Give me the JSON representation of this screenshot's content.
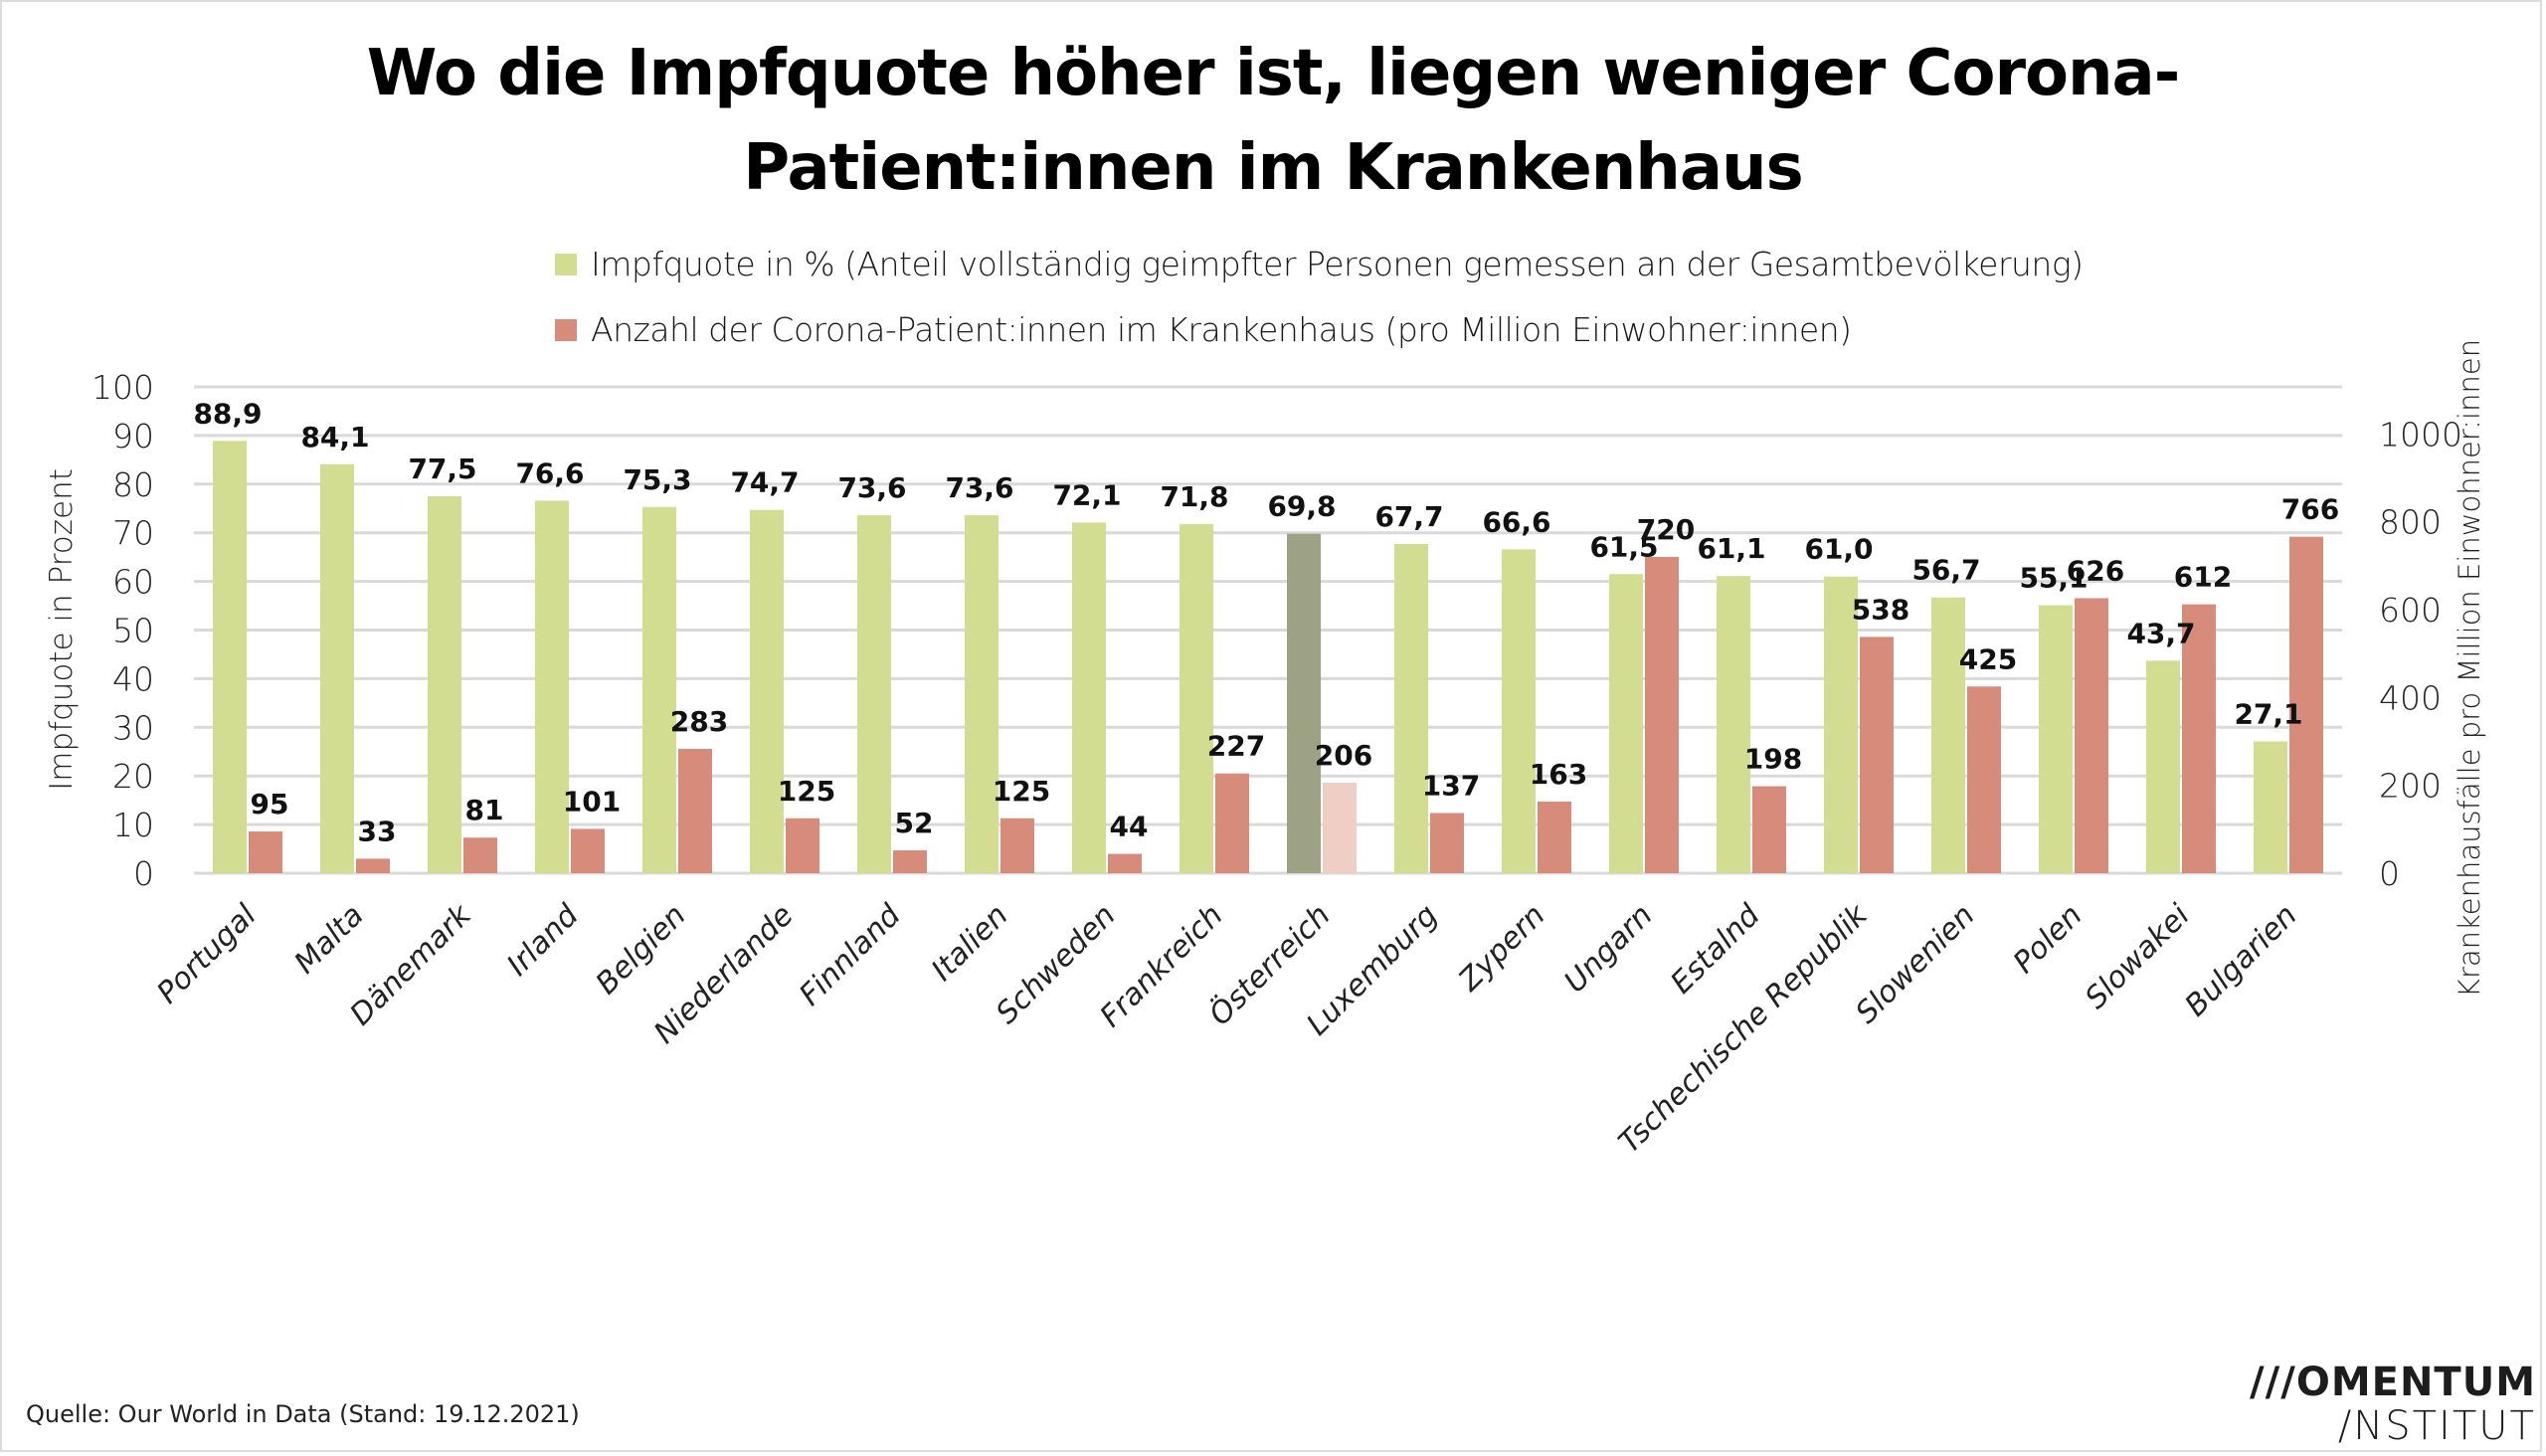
{
  "title": {
    "line1": "Wo die Impfquote höher ist, liegen weniger Corona-",
    "line2": "Patient:innen im Krankenhaus"
  },
  "legend": [
    {
      "label": "Impfquote in % (Anteil vollständig geimpfter Personen gemessen an der Gesamtbevölkerung)",
      "color": "#d3dd91"
    },
    {
      "label": "Anzahl der Corona-Patient:innen im Krankenhaus (pro Million Einwohner:innen)",
      "color": "#d78c7b"
    }
  ],
  "source": "Quelle: Our World in Data (Stand: 19.12.2021)",
  "logo": {
    "line1": "///OMENTUM",
    "line2": "/NSTITUT"
  },
  "colors": {
    "vacc": "#d3dd91",
    "hosp": "#d78c7b",
    "vacc_highlight": "#9da284",
    "hosp_highlight": "#efcec6",
    "grid": "#d9d9d9"
  },
  "chart_data": {
    "type": "bar",
    "title": "Wo die Impfquote höher ist, liegen weniger Corona-Patient:innen im Krankenhaus",
    "xlabel": "",
    "ylabel": "Impfquote in Prozent",
    "ylabel_right": "Krankenhausfälle pro Million Einwohner:innen",
    "ylim": [
      0,
      100
    ],
    "ylim_right": [
      0,
      1107
    ],
    "yticks": [
      "0",
      "10",
      "20",
      "30",
      "40",
      "50",
      "60",
      "70",
      "80",
      "90",
      "100"
    ],
    "yticks_right": [
      "0",
      "200",
      "400",
      "600",
      "800",
      "1000"
    ],
    "grid": true,
    "legend_position": "top",
    "highlight_category": "Österreich",
    "categories": [
      "Portugal",
      "Malta",
      "Dänemark",
      "Irland",
      "Belgien",
      "Niederlande",
      "Finnland",
      "Italien",
      "Schweden",
      "Frankreich",
      "Österreich",
      "Luxemburg",
      "Zypern",
      "Ungarn",
      "Estalnd",
      "Tschechische Republik",
      "Slowenien",
      "Polen",
      "Slowakei",
      "Bulgarien"
    ],
    "series": [
      {
        "name": "Impfquote in % (Anteil vollständig geimpfter Personen gemessen an der Gesamtbevölkerung)",
        "axis": "left",
        "values": [
          88.9,
          84.1,
          77.5,
          76.6,
          75.3,
          74.7,
          73.6,
          73.6,
          72.1,
          71.8,
          69.8,
          67.7,
          66.6,
          61.5,
          61.1,
          61.0,
          56.7,
          55.1,
          43.7,
          27.1
        ],
        "labels": [
          "88,9",
          "84,1",
          "77,5",
          "76,6",
          "75,3",
          "74,7",
          "73,6",
          "73,6",
          "72,1",
          "71,8",
          "69,8",
          "67,7",
          "66,6",
          "61,5",
          "61,1",
          "61,0",
          "56,7",
          "55,1",
          "43,7",
          "27,1"
        ]
      },
      {
        "name": "Anzahl der Corona-Patient:innen im Krankenhaus (pro Million Einwohner:innen)",
        "axis": "right",
        "values": [
          95,
          33,
          81,
          101,
          283,
          125,
          52,
          125,
          44,
          227,
          206,
          137,
          163,
          720,
          198,
          538,
          425,
          626,
          612,
          766
        ],
        "labels": [
          "95",
          "33",
          "81",
          "101",
          "283",
          "125",
          "52",
          "125",
          "44",
          "227",
          "206",
          "137",
          "163",
          "720",
          "198",
          "538",
          "425",
          "626",
          "612",
          "766"
        ]
      }
    ]
  }
}
